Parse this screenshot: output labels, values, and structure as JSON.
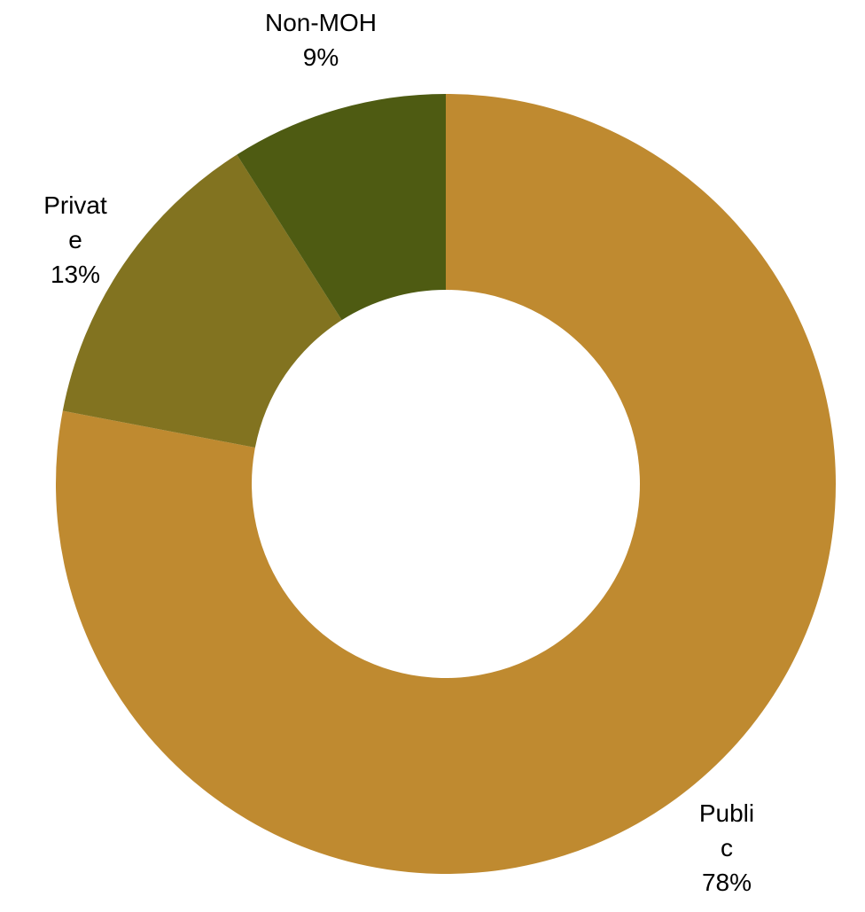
{
  "chart_data": {
    "type": "pie",
    "donut": true,
    "title": "",
    "slices": [
      {
        "name": "Public",
        "value": 78,
        "color": "#BF8A30",
        "label_lines": [
          "Publi",
          "c"
        ],
        "value_label": "78%"
      },
      {
        "name": "Private",
        "value": 13,
        "color": "#827320",
        "label_lines": [
          "Privat",
          "e"
        ],
        "value_label": "13%"
      },
      {
        "name": "Non-MOH",
        "value": 9,
        "color": "#4E5B12",
        "label_lines": [
          "Non-MOH"
        ],
        "value_label": "9%"
      }
    ],
    "legend": "none"
  }
}
